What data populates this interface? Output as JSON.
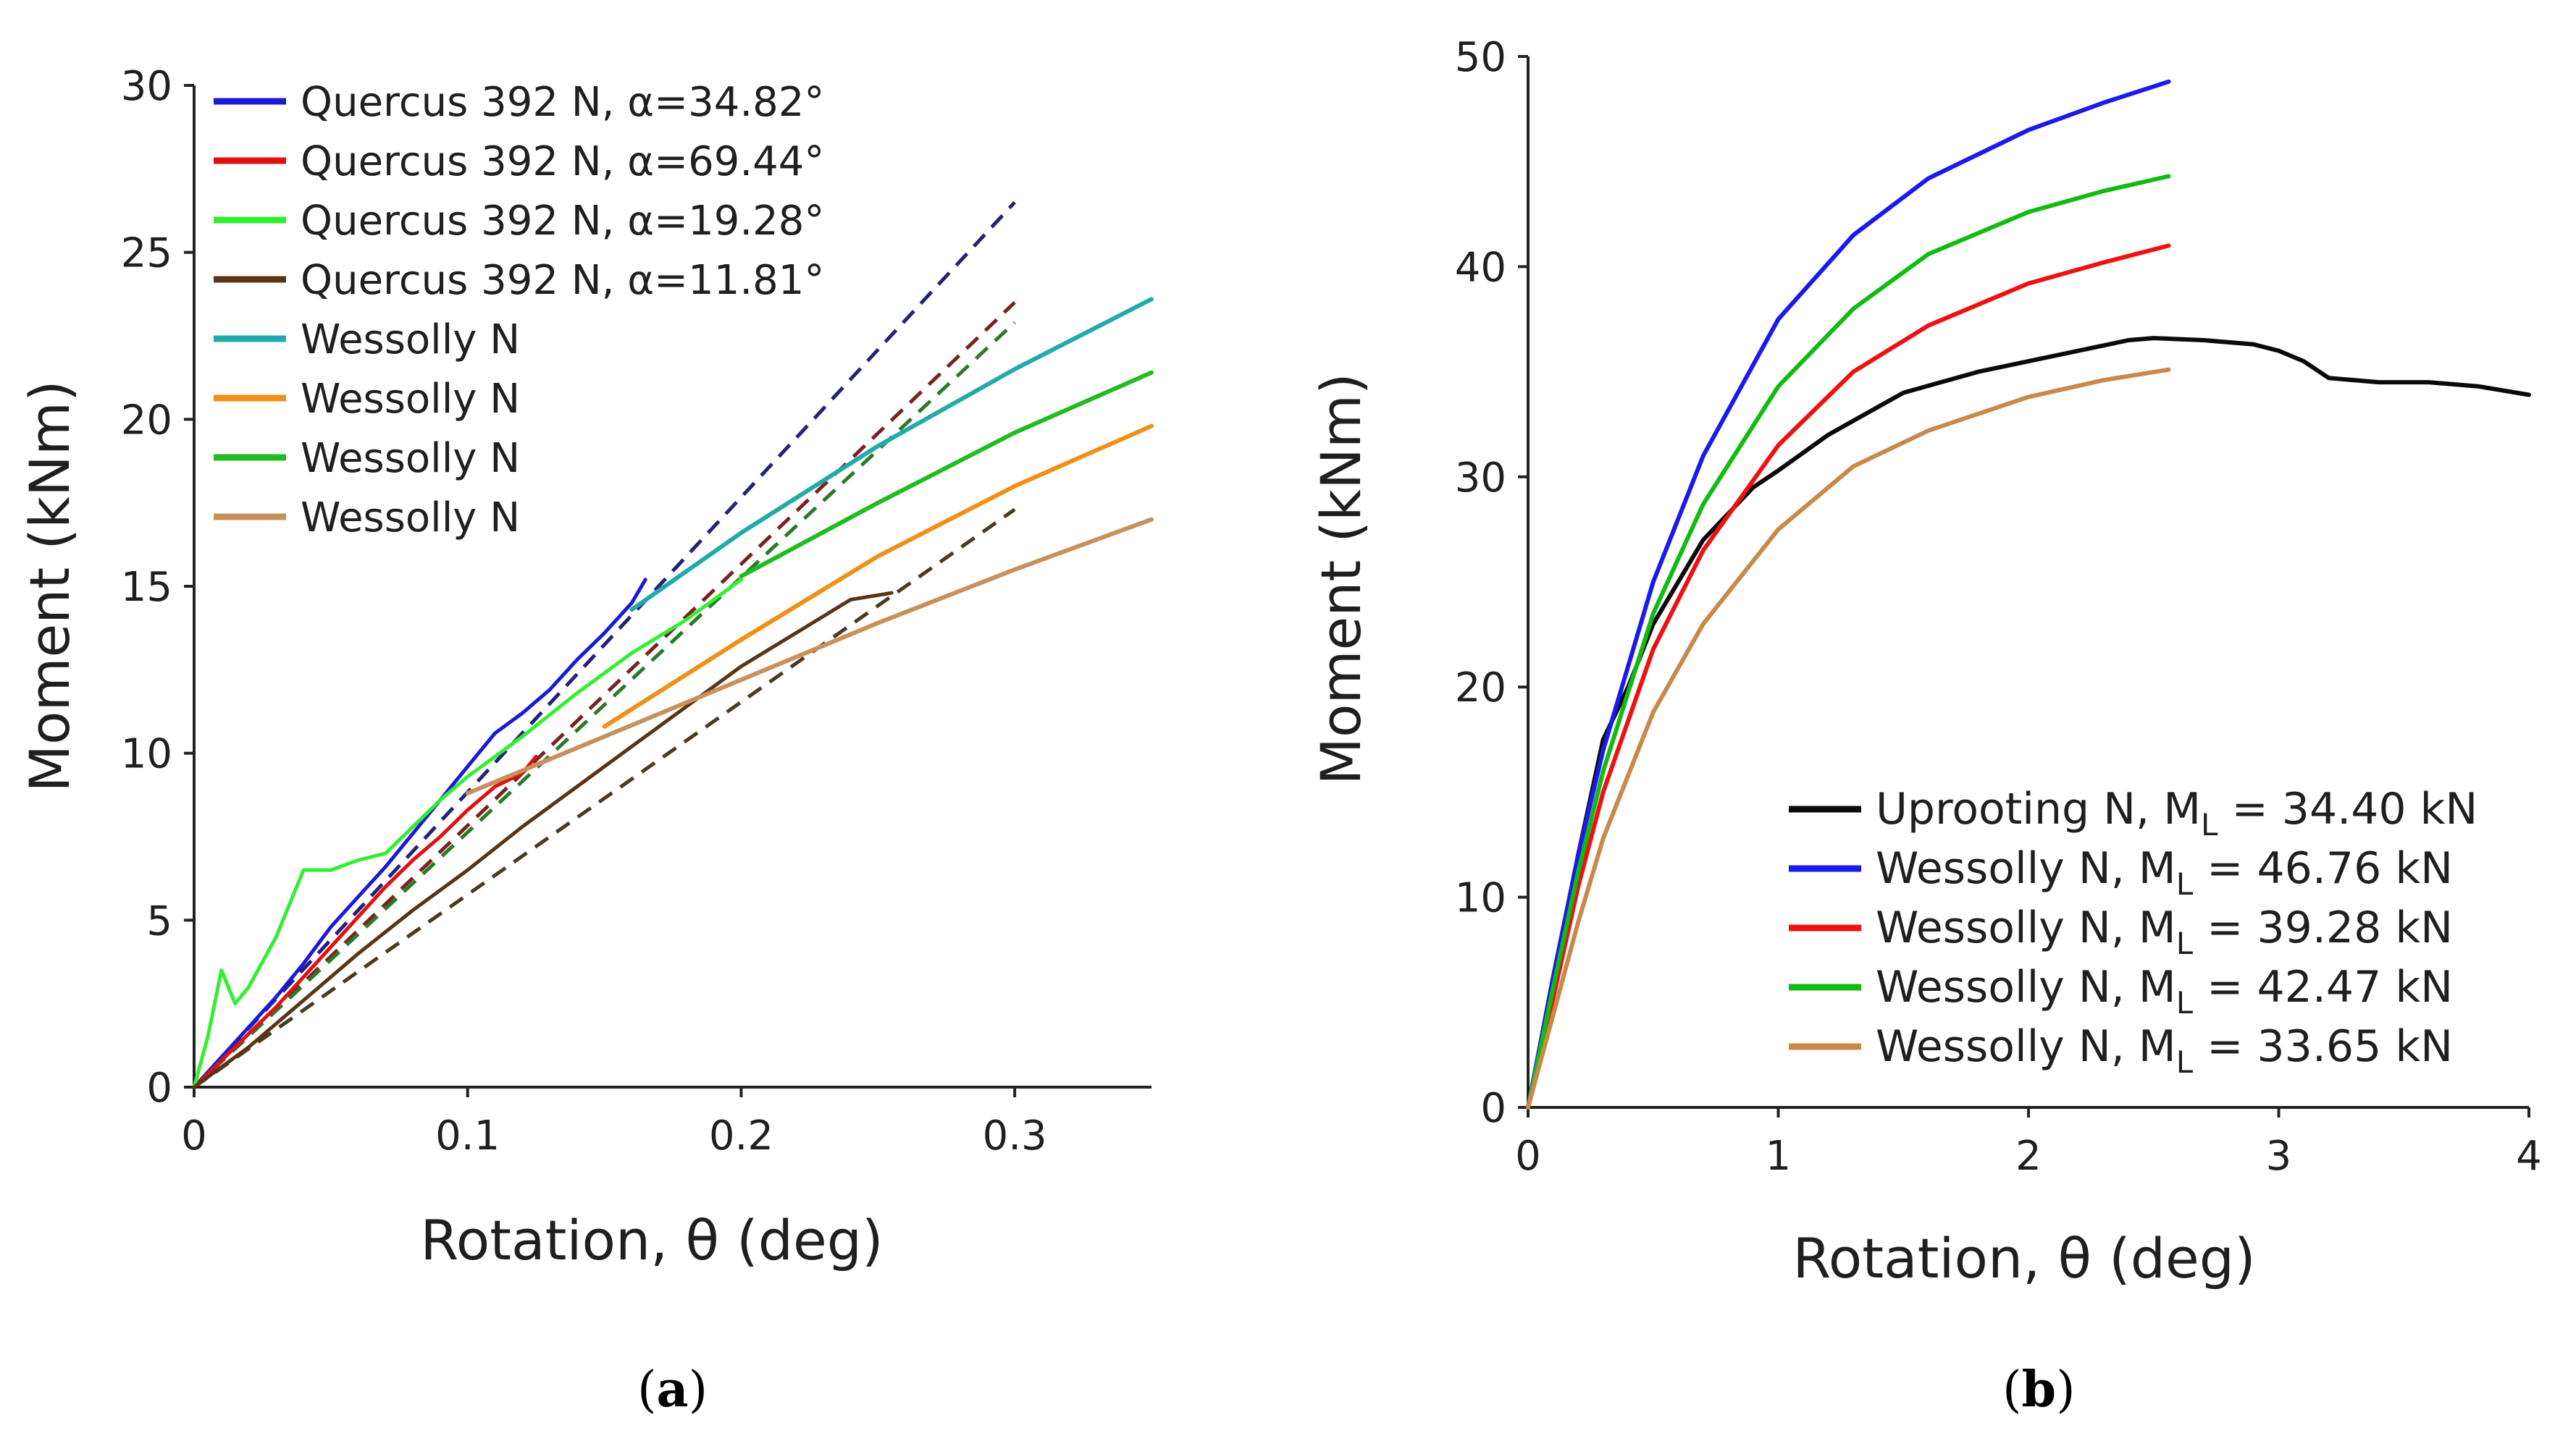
{
  "chart_data": [
    {
      "type": "line",
      "panel_label": {
        "open": "(",
        "letter": "a",
        "close": ")"
      },
      "title": "",
      "xlabel": "Rotation, θ (deg)",
      "ylabel": "Moment (kNm)",
      "xlim": [
        0,
        0.35
      ],
      "ylim": [
        0,
        30
      ],
      "xticks": [
        0,
        0.1,
        0.2,
        0.3
      ],
      "xtick_labels": [
        "0",
        "0.1",
        "0.2",
        "0.3"
      ],
      "yticks": [
        0,
        5,
        10,
        15,
        20,
        25,
        30
      ],
      "ytick_labels": [
        "0",
        "5",
        "10",
        "15",
        "20",
        "25",
        "30"
      ],
      "legend_position": "top-left",
      "series": [
        {
          "name": "Quercus 392 N, α=34.82°",
          "style": "measured",
          "color": "#1a1ad6",
          "x": [
            0,
            0.01,
            0.02,
            0.03,
            0.04,
            0.05,
            0.06,
            0.07,
            0.08,
            0.09,
            0.1,
            0.11,
            0.12,
            0.13,
            0.14,
            0.15,
            0.16,
            0.165
          ],
          "y": [
            0,
            0.9,
            1.8,
            2.7,
            3.7,
            4.8,
            5.7,
            6.6,
            7.6,
            8.6,
            9.6,
            10.6,
            11.2,
            11.9,
            12.8,
            13.6,
            14.5,
            15.2
          ]
        },
        {
          "name": "Quercus 392 N, α=69.44°",
          "style": "measured",
          "color": "#e01010",
          "x": [
            0,
            0.01,
            0.02,
            0.03,
            0.04,
            0.05,
            0.06,
            0.07,
            0.08,
            0.09,
            0.1,
            0.11,
            0.12,
            0.125
          ],
          "y": [
            0,
            0.8,
            1.6,
            2.4,
            3.3,
            4.2,
            5.1,
            6.0,
            6.8,
            7.5,
            8.3,
            9.0,
            9.4,
            9.9
          ]
        },
        {
          "name": "Quercus 392 N, α=19.28°",
          "style": "measured",
          "color": "#33ee33",
          "x": [
            0,
            0.005,
            0.01,
            0.015,
            0.02,
            0.03,
            0.04,
            0.05,
            0.06,
            0.07,
            0.08,
            0.09,
            0.1,
            0.12,
            0.14,
            0.16,
            0.18,
            0.2
          ],
          "y": [
            0,
            1.5,
            3.5,
            2.5,
            3.0,
            4.5,
            6.5,
            6.5,
            6.8,
            7.0,
            7.8,
            8.6,
            9.3,
            10.5,
            11.8,
            13.0,
            14.0,
            15.2
          ]
        },
        {
          "name": "Quercus 392 N, α=11.81°",
          "style": "measured",
          "color": "#5a3414",
          "x": [
            0,
            0.02,
            0.04,
            0.06,
            0.08,
            0.1,
            0.12,
            0.14,
            0.16,
            0.18,
            0.2,
            0.22,
            0.24,
            0.255
          ],
          "y": [
            0,
            1.2,
            2.6,
            4.0,
            5.3,
            6.5,
            7.8,
            9.0,
            10.2,
            11.4,
            12.6,
            13.6,
            14.6,
            14.8
          ]
        },
        {
          "name": "Wessolly N",
          "style": "model",
          "color": "#22aaaa",
          "x": [
            0.16,
            0.2,
            0.25,
            0.3,
            0.35
          ],
          "y": [
            14.3,
            16.6,
            19.2,
            21.5,
            23.6
          ]
        },
        {
          "name": "Wessolly N",
          "style": "model",
          "color": "#f09018",
          "x": [
            0.15,
            0.2,
            0.25,
            0.3,
            0.35
          ],
          "y": [
            10.8,
            13.4,
            15.9,
            18.0,
            19.8
          ]
        },
        {
          "name": "Wessolly N",
          "style": "model",
          "color": "#22bb22",
          "x": [
            0.2,
            0.25,
            0.3,
            0.35
          ],
          "y": [
            15.3,
            17.5,
            19.6,
            21.4
          ]
        },
        {
          "name": "Wessolly N",
          "style": "model",
          "color": "#c8905a",
          "x": [
            0.1,
            0.15,
            0.2,
            0.25,
            0.3,
            0.35
          ],
          "y": [
            8.8,
            10.5,
            12.2,
            13.9,
            15.5,
            17.0
          ]
        }
      ],
      "linear_fits": [
        {
          "color": "#22227a",
          "x": [
            0,
            0.3
          ],
          "y": [
            0,
            26.5
          ]
        },
        {
          "color": "#7a2222",
          "x": [
            0,
            0.3
          ],
          "y": [
            0,
            23.5
          ]
        },
        {
          "color": "#2a7a2a",
          "x": [
            0,
            0.3
          ],
          "y": [
            0,
            22.9
          ]
        },
        {
          "color": "#4a3a22",
          "x": [
            0,
            0.3
          ],
          "y": [
            0,
            17.3
          ]
        }
      ]
    },
    {
      "type": "line",
      "panel_label": {
        "open": "(",
        "letter": "b",
        "close": ")"
      },
      "title": "",
      "xlabel": "Rotation, θ (deg)",
      "ylabel": "Moment (kNm)",
      "xlim": [
        0,
        4
      ],
      "ylim": [
        0,
        50
      ],
      "xticks": [
        0,
        1,
        2,
        3,
        4
      ],
      "xtick_labels": [
        "0",
        "1",
        "2",
        "3",
        "4"
      ],
      "yticks": [
        0,
        10,
        20,
        30,
        40,
        50
      ],
      "ytick_labels": [
        "0",
        "10",
        "20",
        "30",
        "40",
        "50"
      ],
      "legend_position": "bottom-right",
      "series": [
        {
          "name": "Uprooting N, ",
          "sub": "L",
          "value_text": " = 34.40 kN",
          "color": "#0a0a0a",
          "x": [
            0,
            0.05,
            0.1,
            0.2,
            0.3,
            0.4,
            0.5,
            0.7,
            0.9,
            1.0,
            1.2,
            1.5,
            1.8,
            2.0,
            2.2,
            2.4,
            2.5,
            2.7,
            2.9,
            3.0,
            3.1,
            3.2,
            3.4,
            3.6,
            3.8,
            4.0
          ],
          "y": [
            0,
            3,
            6,
            12,
            17.5,
            20,
            23,
            27,
            29.5,
            30.3,
            32,
            34,
            35,
            35.5,
            36,
            36.5,
            36.6,
            36.5,
            36.3,
            36,
            35.5,
            34.7,
            34.5,
            34.5,
            34.3,
            33.9
          ]
        },
        {
          "name": "Wessolly N, ",
          "sub": "L",
          "value_text": " = 46.76 kN",
          "color": "#1a1aee",
          "x": [
            0,
            0.1,
            0.2,
            0.3,
            0.5,
            0.7,
            1.0,
            1.3,
            1.6,
            2.0,
            2.3,
            2.56
          ],
          "y": [
            0,
            6.2,
            12,
            17,
            25,
            31,
            37.5,
            41.5,
            44.2,
            46.5,
            47.8,
            48.8
          ]
        },
        {
          "name": "Wessolly N, ",
          "sub": "L",
          "value_text": " = 39.28 kN",
          "color": "#ee1111",
          "x": [
            0,
            0.1,
            0.2,
            0.3,
            0.5,
            0.7,
            1.0,
            1.3,
            1.6,
            2.0,
            2.3,
            2.56
          ],
          "y": [
            0,
            5.2,
            10.5,
            15,
            21.8,
            26.5,
            31.5,
            35,
            37.2,
            39.2,
            40.2,
            41.0
          ]
        },
        {
          "name": "Wessolly N, ",
          "sub": "L",
          "value_text": " = 42.47 kN",
          "color": "#11bb11",
          "x": [
            0,
            0.1,
            0.2,
            0.3,
            0.5,
            0.7,
            1.0,
            1.3,
            1.6,
            2.0,
            2.3,
            2.56
          ],
          "y": [
            0,
            5.7,
            11.2,
            16,
            23.5,
            28.7,
            34.3,
            38,
            40.6,
            42.6,
            43.6,
            44.3
          ]
        },
        {
          "name": "Wessolly N, ",
          "sub": "L",
          "value_text": " = 33.65 kN",
          "color": "#c8894a",
          "x": [
            0,
            0.1,
            0.2,
            0.3,
            0.5,
            0.7,
            1.0,
            1.3,
            1.6,
            2.0,
            2.3,
            2.56
          ],
          "y": [
            0,
            4.4,
            8.8,
            12.8,
            18.8,
            23,
            27.5,
            30.5,
            32.2,
            33.8,
            34.6,
            35.1
          ]
        }
      ],
      "legend_label_prefix_symbol": "M"
    }
  ]
}
